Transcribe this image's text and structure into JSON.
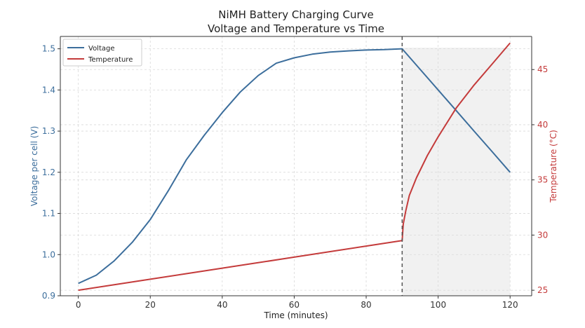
{
  "chart_data": {
    "type": "line",
    "title": "NiMH Battery Charging Curve",
    "subtitle": "Voltage and Temperature vs Time",
    "xlabel": "Time (minutes)",
    "ylabel_left": "Voltage per cell (V)",
    "ylabel_right": "Temperature (°C)",
    "xlim": [
      -5,
      126
    ],
    "ylim_left": [
      0.9,
      1.53
    ],
    "ylim_right": [
      24.5,
      48
    ],
    "x_ticks": [
      0,
      20,
      40,
      60,
      80,
      100,
      120
    ],
    "y_left_ticks": [
      0.9,
      1.0,
      1.1,
      1.2,
      1.3,
      1.4,
      1.5
    ],
    "y_right_ticks": [
      25,
      30,
      35,
      40,
      45
    ],
    "grid": true,
    "legend_position": "top-left",
    "shaded_region_x": [
      90,
      120
    ],
    "vertical_line_x": 90,
    "colors": {
      "voltage": "#3c6e9c",
      "temperature": "#c43b3b",
      "left_axis_text": "#3c6e9c",
      "right_axis_text": "#c43b3b",
      "shade": "#f1f1f1",
      "vline": "#555555",
      "grid": "#d9d9d9"
    },
    "series": [
      {
        "name": "Voltage",
        "axis": "left",
        "x": [
          0,
          5,
          10,
          15,
          20,
          25,
          30,
          35,
          40,
          45,
          50,
          55,
          60,
          65,
          70,
          75,
          80,
          85,
          90,
          95,
          100,
          105,
          110,
          115,
          120
        ],
        "values": [
          0.93,
          0.95,
          0.985,
          1.03,
          1.085,
          1.155,
          1.23,
          1.29,
          1.345,
          1.395,
          1.435,
          1.465,
          1.478,
          1.487,
          1.492,
          1.495,
          1.497,
          1.498,
          1.5,
          1.45,
          1.4,
          1.35,
          1.3,
          1.25,
          1.2
        ]
      },
      {
        "name": "Temperature",
        "axis": "right",
        "x": [
          0,
          10,
          20,
          30,
          40,
          50,
          60,
          70,
          80,
          90,
          90.3,
          91,
          92,
          94,
          97,
          100,
          105,
          110,
          115,
          120
        ],
        "values": [
          25.0,
          25.5,
          26.0,
          26.5,
          27.0,
          27.5,
          28.0,
          28.5,
          29.0,
          29.5,
          31.0,
          32.2,
          33.6,
          35.2,
          37.2,
          38.9,
          41.5,
          43.6,
          45.5,
          47.4
        ]
      }
    ]
  }
}
